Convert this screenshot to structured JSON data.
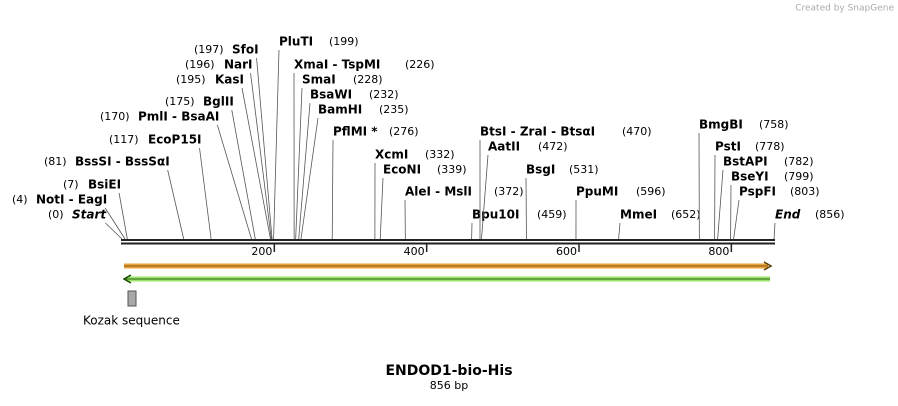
{
  "credit": "Created by SnapGene",
  "map": {
    "title": "ENDOD1-bio-His",
    "length_label": "856 bp",
    "length": 856,
    "ruler": {
      "ticks": [
        200,
        400,
        600,
        800
      ]
    },
    "sites": [
      {
        "name": "Start",
        "position": 0,
        "position_label": "(0)"
      },
      {
        "name": "NotI - EagI",
        "position": 4,
        "position_label": "(4)"
      },
      {
        "name": "BsiEI",
        "position": 7,
        "position_label": "(7)"
      },
      {
        "name": "BssSI - BssSαI",
        "position": 81,
        "position_label": "(81)"
      },
      {
        "name": "EcoP15I",
        "position": 117,
        "position_label": "(117)"
      },
      {
        "name": "PmlI - BsaAI",
        "position": 170,
        "position_label": "(170)"
      },
      {
        "name": "BglII",
        "position": 175,
        "position_label": "(175)"
      },
      {
        "name": "KasI",
        "position": 195,
        "position_label": "(195)"
      },
      {
        "name": "NarI",
        "position": 196,
        "position_label": "(196)"
      },
      {
        "name": "SfoI",
        "position": 197,
        "position_label": "(197)"
      },
      {
        "name": "PluTI",
        "position": 199,
        "position_label": "(199)"
      },
      {
        "name": "XmaI - TspMI",
        "position": 226,
        "position_label": "(226)"
      },
      {
        "name": "SmaI",
        "position": 228,
        "position_label": "(228)"
      },
      {
        "name": "BsaWI",
        "position": 232,
        "position_label": "(232)"
      },
      {
        "name": "BamHI",
        "position": 235,
        "position_label": "(235)"
      },
      {
        "name": "PflMI *",
        "position": 276,
        "position_label": "(276)"
      },
      {
        "name": "XcmI",
        "position": 332,
        "position_label": "(332)"
      },
      {
        "name": "EcoNI",
        "position": 339,
        "position_label": "(339)"
      },
      {
        "name": "AleI - MslI",
        "position": 372,
        "position_label": "(372)"
      },
      {
        "name": "Bpu10I",
        "position": 459,
        "position_label": "(459)"
      },
      {
        "name": "BtsI - ZraI - BtsαI",
        "position": 470,
        "position_label": "(470)"
      },
      {
        "name": "AatII",
        "position": 472,
        "position_label": "(472)"
      },
      {
        "name": "BsgI",
        "position": 531,
        "position_label": "(531)"
      },
      {
        "name": "PpuMI",
        "position": 596,
        "position_label": "(596)"
      },
      {
        "name": "MmeI",
        "position": 652,
        "position_label": "(652)"
      },
      {
        "name": "BmgBI",
        "position": 758,
        "position_label": "(758)"
      },
      {
        "name": "PstI",
        "position": 778,
        "position_label": "(778)"
      },
      {
        "name": "BstAPI",
        "position": 782,
        "position_label": "(782)"
      },
      {
        "name": "BseYI",
        "position": 799,
        "position_label": "(799)"
      },
      {
        "name": "PspFI",
        "position": 803,
        "position_label": "(803)"
      },
      {
        "name": "End",
        "position": 856,
        "position_label": "(856)"
      }
    ],
    "features": [
      {
        "name": "Kozak sequence"
      }
    ]
  }
}
